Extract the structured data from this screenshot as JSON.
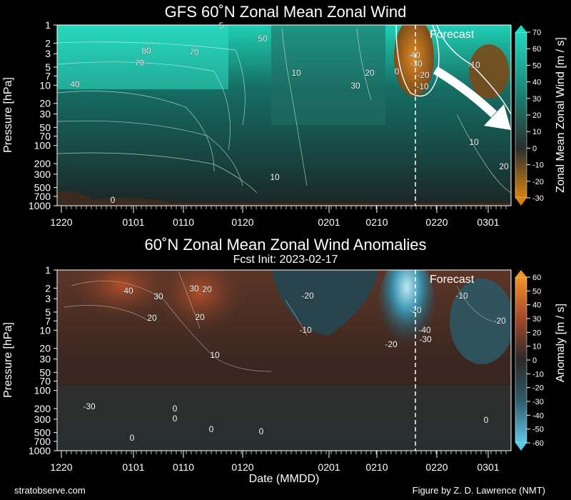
{
  "chart_data": [
    {
      "type": "heatmap",
      "title": "GFS 60˚N Zonal Mean Zonal Wind",
      "ylabel": "Pressure [hPa]",
      "xlabel": "",
      "yscale": "log",
      "ylim": [
        1000,
        1
      ],
      "y_ticks": [
        "1",
        "2",
        "3",
        "5",
        "7",
        "10",
        "20",
        "30",
        "50",
        "70",
        "100",
        "200",
        "300",
        "500",
        "700",
        "1000"
      ],
      "x_ticks": [
        "1220",
        "0101",
        "0110",
        "0120",
        "0201",
        "0210",
        "0220",
        "0301"
      ],
      "forecast_label": "Forecast",
      "forecast_start": "0217",
      "colorbar": {
        "label": "Zonal Mean Zonal Wind [m / s]",
        "ticks": [
          "70",
          "60",
          "50",
          "40",
          "30",
          "20",
          "10",
          "0",
          "-10",
          "-20",
          "-30"
        ],
        "range": [
          -30,
          70
        ]
      },
      "contour_labels": [
        "5",
        "50",
        "80",
        "70",
        "70",
        "40",
        "10",
        "30",
        "20",
        "-40",
        "-30",
        "-20",
        "-10",
        "0",
        "-10",
        "10",
        "20",
        "10",
        "0"
      ]
    },
    {
      "type": "heatmap",
      "title": "60˚N Zonal Mean Zonal Wind Anomalies",
      "subtitle": "Fcst Init: 2023-02-17",
      "ylabel": "Pressure [hPa]",
      "xlabel": "Date (MMDD)",
      "yscale": "log",
      "ylim": [
        1000,
        1
      ],
      "y_ticks": [
        "1",
        "2",
        "3",
        "5",
        "7",
        "10",
        "20",
        "30",
        "50",
        "70",
        "100",
        "200",
        "300",
        "500",
        "700",
        "1000"
      ],
      "x_ticks": [
        "1220",
        "0101",
        "0110",
        "0120",
        "0201",
        "0210",
        "0220",
        "0301"
      ],
      "forecast_label": "Forecast",
      "forecast_start": "0217",
      "colorbar": {
        "label": "Anomaly [m / s]",
        "ticks": [
          "60",
          "50",
          "40",
          "30",
          "20",
          "10",
          "0",
          "-10",
          "-20",
          "-30",
          "-40",
          "-50",
          "-60"
        ],
        "range": [
          -60,
          60
        ]
      },
      "contour_labels": [
        "40",
        "30",
        "30",
        "20",
        "20",
        "20",
        "10",
        "-20",
        "-10",
        "-20",
        "-40",
        "-30",
        "-20",
        "-10",
        "-20",
        "-30",
        "0",
        "0",
        "0",
        "0",
        "0",
        "0"
      ]
    }
  ],
  "footer": {
    "left": "stratobserve.com",
    "right": "Figure by Z. D. Lawrence (NMT)"
  }
}
